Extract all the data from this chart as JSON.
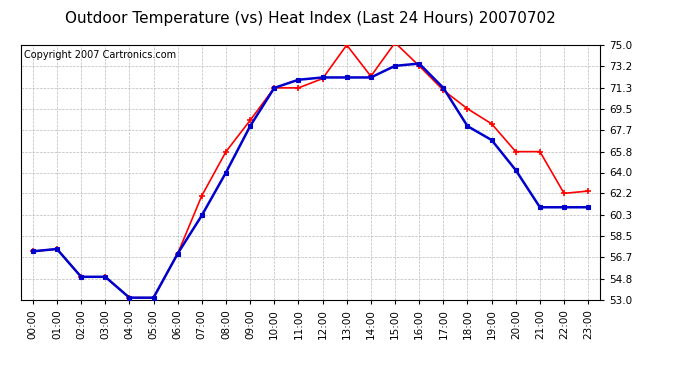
{
  "title": "Outdoor Temperature (vs) Heat Index (Last 24 Hours) 20070702",
  "copyright_text": "Copyright 2007 Cartronics.com",
  "hours": [
    "00:00",
    "01:00",
    "02:00",
    "03:00",
    "04:00",
    "05:00",
    "06:00",
    "07:00",
    "08:00",
    "09:00",
    "10:00",
    "11:00",
    "12:00",
    "13:00",
    "14:00",
    "15:00",
    "16:00",
    "17:00",
    "18:00",
    "19:00",
    "20:00",
    "21:00",
    "22:00",
    "23:00"
  ],
  "outdoor_temp": [
    57.2,
    57.4,
    55.0,
    55.0,
    53.2,
    53.2,
    57.0,
    62.0,
    65.8,
    68.5,
    71.3,
    71.3,
    72.1,
    75.0,
    72.3,
    75.2,
    73.2,
    71.1,
    69.5,
    68.2,
    65.8,
    65.8,
    62.2,
    62.4
  ],
  "heat_index": [
    57.2,
    57.4,
    55.0,
    55.0,
    53.2,
    53.2,
    57.0,
    60.3,
    64.0,
    68.0,
    71.3,
    72.0,
    72.2,
    72.2,
    72.2,
    73.2,
    73.4,
    71.3,
    68.0,
    66.8,
    64.2,
    61.0,
    61.0,
    61.0
  ],
  "outdoor_color": "#ff0000",
  "heat_index_color": "#0000cc",
  "bg_color": "#ffffff",
  "grid_color": "#bbbbbb",
  "ylim_min": 53.0,
  "ylim_max": 75.0,
  "yticks": [
    53.0,
    54.8,
    56.7,
    58.5,
    60.3,
    62.2,
    64.0,
    65.8,
    67.7,
    69.5,
    71.3,
    73.2,
    75.0
  ],
  "title_fontsize": 11,
  "copyright_fontsize": 7,
  "tick_fontsize": 7.5,
  "marker_size": 3.5
}
